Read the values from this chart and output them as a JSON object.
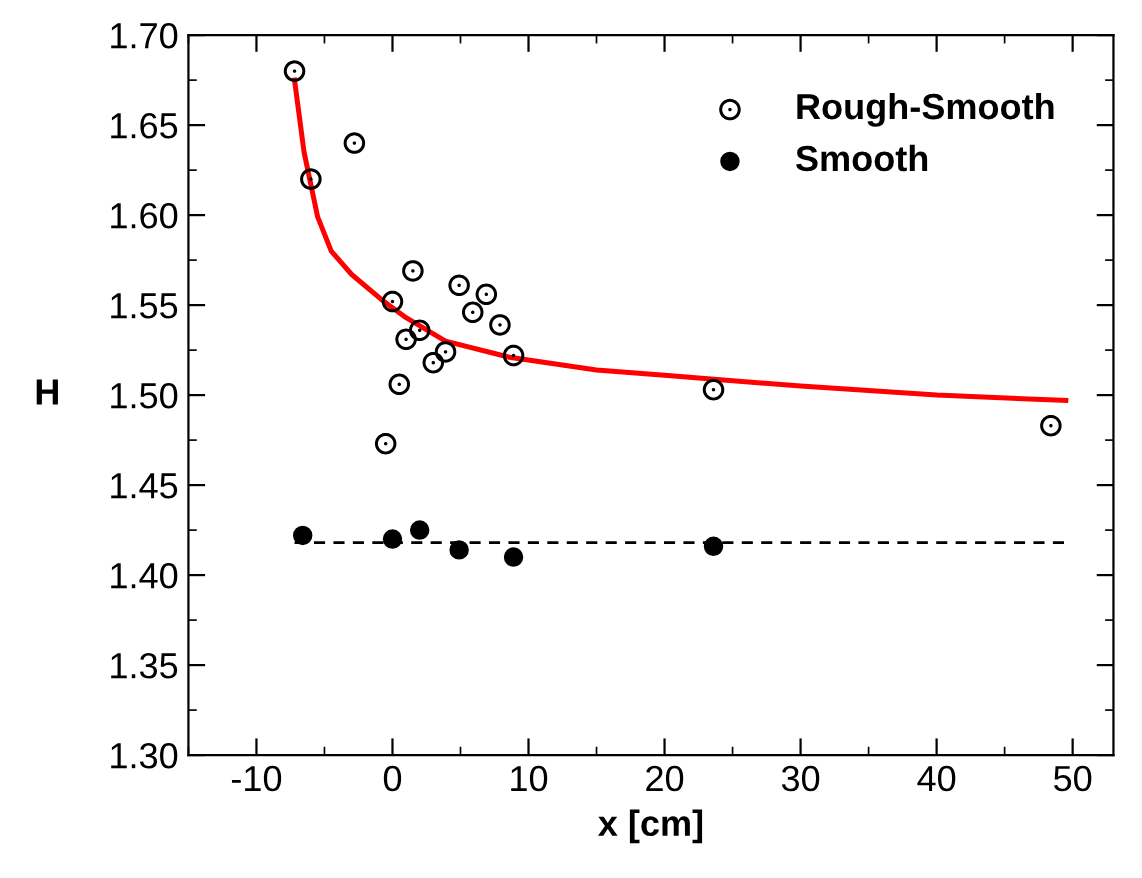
{
  "chart_data": {
    "type": "scatter",
    "xlabel": "x [cm]",
    "ylabel": "H",
    "xlim": [
      -15,
      53
    ],
    "ylim": [
      1.3,
      1.7
    ],
    "xticks": [
      -10,
      0,
      10,
      20,
      30,
      40,
      50
    ],
    "yticks": [
      {
        "value": 1.3,
        "label": "1.30"
      },
      {
        "value": 1.35,
        "label": "1.35"
      },
      {
        "value": 1.4,
        "label": "1.40"
      },
      {
        "value": 1.45,
        "label": "1.45"
      },
      {
        "value": 1.5,
        "label": "1.50"
      },
      {
        "value": 1.55,
        "label": "1.55"
      },
      {
        "value": 1.6,
        "label": "1.60"
      },
      {
        "value": 1.65,
        "label": "1.65"
      },
      {
        "value": 1.7,
        "label": "1.70"
      }
    ],
    "grid": false,
    "legend": "top right",
    "series": [
      {
        "name": "Rough-Smooth",
        "marker": "circle",
        "color": "#000000",
        "x": [
          -7.2,
          -6.0,
          -2.8,
          0.0,
          1.5,
          1.0,
          2.0,
          0.5,
          -0.5,
          3.0,
          3.9,
          4.9,
          5.9,
          6.9,
          7.9,
          8.9,
          23.6,
          48.4
        ],
        "values": [
          1.68,
          1.62,
          1.64,
          1.552,
          1.569,
          1.531,
          1.536,
          1.506,
          1.473,
          1.518,
          1.524,
          1.561,
          1.546,
          1.556,
          1.539,
          1.522,
          1.503,
          1.483
        ]
      },
      {
        "name": "Smooth",
        "marker": "circle",
        "color": "#000000",
        "x": [
          -6.6,
          0.0,
          2.0,
          4.9,
          8.9,
          23.6
        ],
        "values": [
          1.422,
          1.42,
          1.425,
          1.414,
          1.41,
          1.416
        ]
      },
      {
        "type": "line",
        "line_style": "solid",
        "color": "#ff0000",
        "x": [
          -7.2,
          -6.5,
          -5.5,
          -4.5,
          -3,
          -0.8,
          1,
          3.9,
          8.6,
          15,
          20,
          30,
          40,
          49.5
        ],
        "values": [
          1.675,
          1.635,
          1.599,
          1.58,
          1.567,
          1.553,
          1.543,
          1.53,
          1.521,
          1.514,
          1.511,
          1.505,
          1.5,
          1.497
        ]
      },
      {
        "type": "line",
        "line_style": "dashed",
        "color": "#000000",
        "x": [
          -7.2,
          49.5
        ],
        "values": [
          1.418,
          1.418
        ]
      }
    ]
  }
}
